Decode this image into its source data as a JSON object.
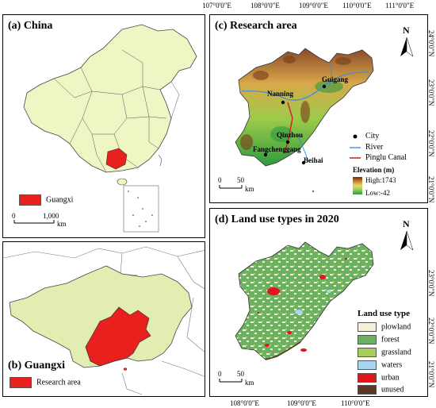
{
  "top_coords": [
    "107°0'0\"E",
    "108°0'0\"E",
    "109°0'0\"E",
    "110°0'0\"E",
    "111°0'0\"E"
  ],
  "bottom_coords": [
    "108°0'0\"E",
    "109°0'0\"E",
    "110°0'0\"E"
  ],
  "right_coords_top": [
    "24°0'0\"N",
    "23°0'0\"N",
    "22°0'0\"N",
    "21°0'0\"N"
  ],
  "right_coords_bottom": [
    "23°0'0\"N",
    "22°0'0\"N",
    "21°0'0\"N"
  ],
  "panel_a": {
    "title": "(a) China",
    "legend": "Guangxi",
    "scale_left": "0",
    "scale_right": "1,000",
    "scale_unit": "km",
    "fill": "#f0f5c4",
    "highlight": "#e8201e"
  },
  "panel_b": {
    "title": "(b) Guangxi",
    "legend": "Research area"
  },
  "panel_c": {
    "title": "(c) Research area",
    "north": "N",
    "cities": [
      "Guigang",
      "Nanning",
      "Qinzhou",
      "Fangchenggang",
      "Beihai"
    ],
    "legend": {
      "city": "City",
      "river": "River",
      "canal": "Pinglu Canal"
    },
    "elevation_title": "Elevation (m)",
    "elev_high": "High:1743",
    "elev_low": "Low:-42",
    "scale_left": "0",
    "scale_right": "50",
    "scale_unit": "km"
  },
  "panel_d": {
    "title": "(d) Land use types in 2020",
    "north": "N",
    "legend_title": "Land use type",
    "classes": [
      {
        "label": "plowland",
        "color": "#f5f0dc"
      },
      {
        "label": "forest",
        "color": "#6cb062"
      },
      {
        "label": "grassland",
        "color": "#a9cd5a"
      },
      {
        "label": "waters",
        "color": "#a6d6f0"
      },
      {
        "label": "urban",
        "color": "#e3141b"
      },
      {
        "label": "unused",
        "color": "#5a3a26"
      }
    ],
    "scale_left": "0",
    "scale_right": "50",
    "scale_unit": "km"
  }
}
